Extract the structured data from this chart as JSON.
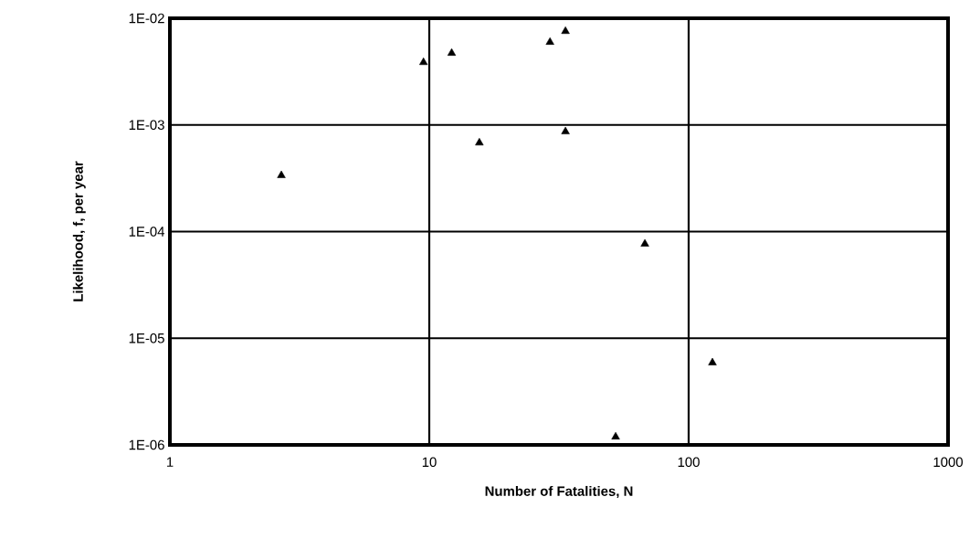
{
  "chart_data": {
    "type": "scatter",
    "xlabel": "Number of Fatalities, N",
    "ylabel": "Likelihood, f, per year",
    "x": [
      2.69,
      9.5,
      12.2,
      15.6,
      29.2,
      33.5,
      33.5,
      52.3,
      67.8,
      123.5
    ],
    "values": [
      0.000336,
      0.00386,
      0.00471,
      0.00068,
      0.00597,
      0.00755,
      0.000865,
      1.19e-06,
      7.66e-05,
      5.9e-06
    ],
    "color": "#000000",
    "marker": "triangle",
    "log": "xy",
    "grid": true,
    "xlim": [
      1,
      1000
    ],
    "ylim": [
      1e-06,
      0.01
    ],
    "xticks": [
      1,
      10,
      100,
      1000
    ],
    "yticks": [
      {
        "value": 1e-06,
        "label": "1E-06"
      },
      {
        "value": 1e-05,
        "label": "1E-05"
      },
      {
        "value": 0.0001,
        "label": "1E-04"
      },
      {
        "value": 0.001,
        "label": "1E-03"
      },
      {
        "value": 0.01,
        "label": "1E-02"
      }
    ]
  }
}
